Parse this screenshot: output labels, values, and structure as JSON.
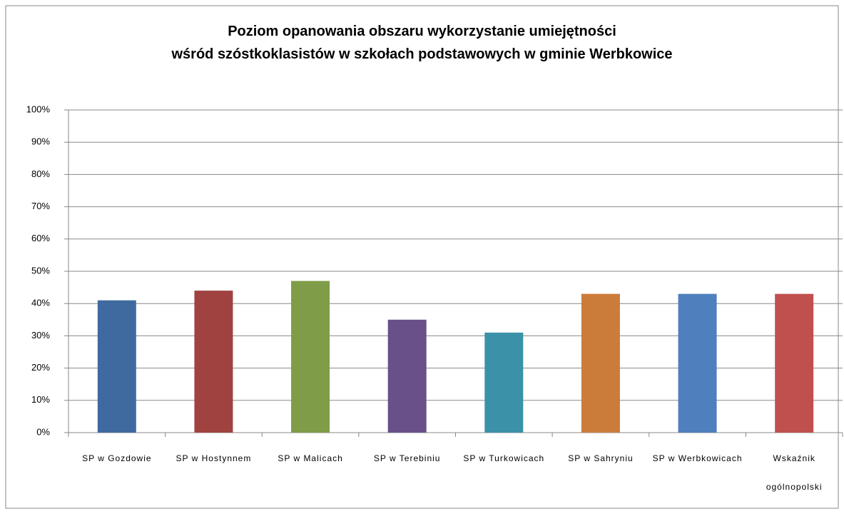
{
  "chart_data": {
    "type": "bar",
    "title": "Poziom opanowania obszaru wykorzystanie umiejętności\nwśród szóstkoklasistów w szkołach podstawowych w gminie Werbkowice",
    "categories": [
      "SP w Gozdowie",
      "SP w Hostynnem",
      "SP w Malicach",
      "SP w Terebiniu",
      "SP w Turkowicach",
      "SP w Sahryniu",
      "SP w Werbkowicach",
      "Wskaźnik ogólnopolski"
    ],
    "values": [
      41,
      44,
      47,
      35,
      31,
      43,
      43,
      43
    ],
    "colors": [
      "#3f6aa0",
      "#a04240",
      "#7f9c48",
      "#6a5089",
      "#3b92a8",
      "#cc7c3a",
      "#4f80bd",
      "#c0504e"
    ],
    "ylim": [
      0,
      100
    ],
    "yticks": [
      {
        "value": 0,
        "label": "0%"
      },
      {
        "value": 10,
        "label": "10%"
      },
      {
        "value": 20,
        "label": "20%"
      },
      {
        "value": 30,
        "label": "30%"
      },
      {
        "value": 40,
        "label": "40%"
      },
      {
        "value": 50,
        "label": "50%"
      },
      {
        "value": 60,
        "label": "60%"
      },
      {
        "value": 70,
        "label": "70%"
      },
      {
        "value": 80,
        "label": "80%"
      },
      {
        "value": 90,
        "label": "90%"
      },
      {
        "value": 100,
        "label": "100%"
      }
    ],
    "grid": true
  }
}
